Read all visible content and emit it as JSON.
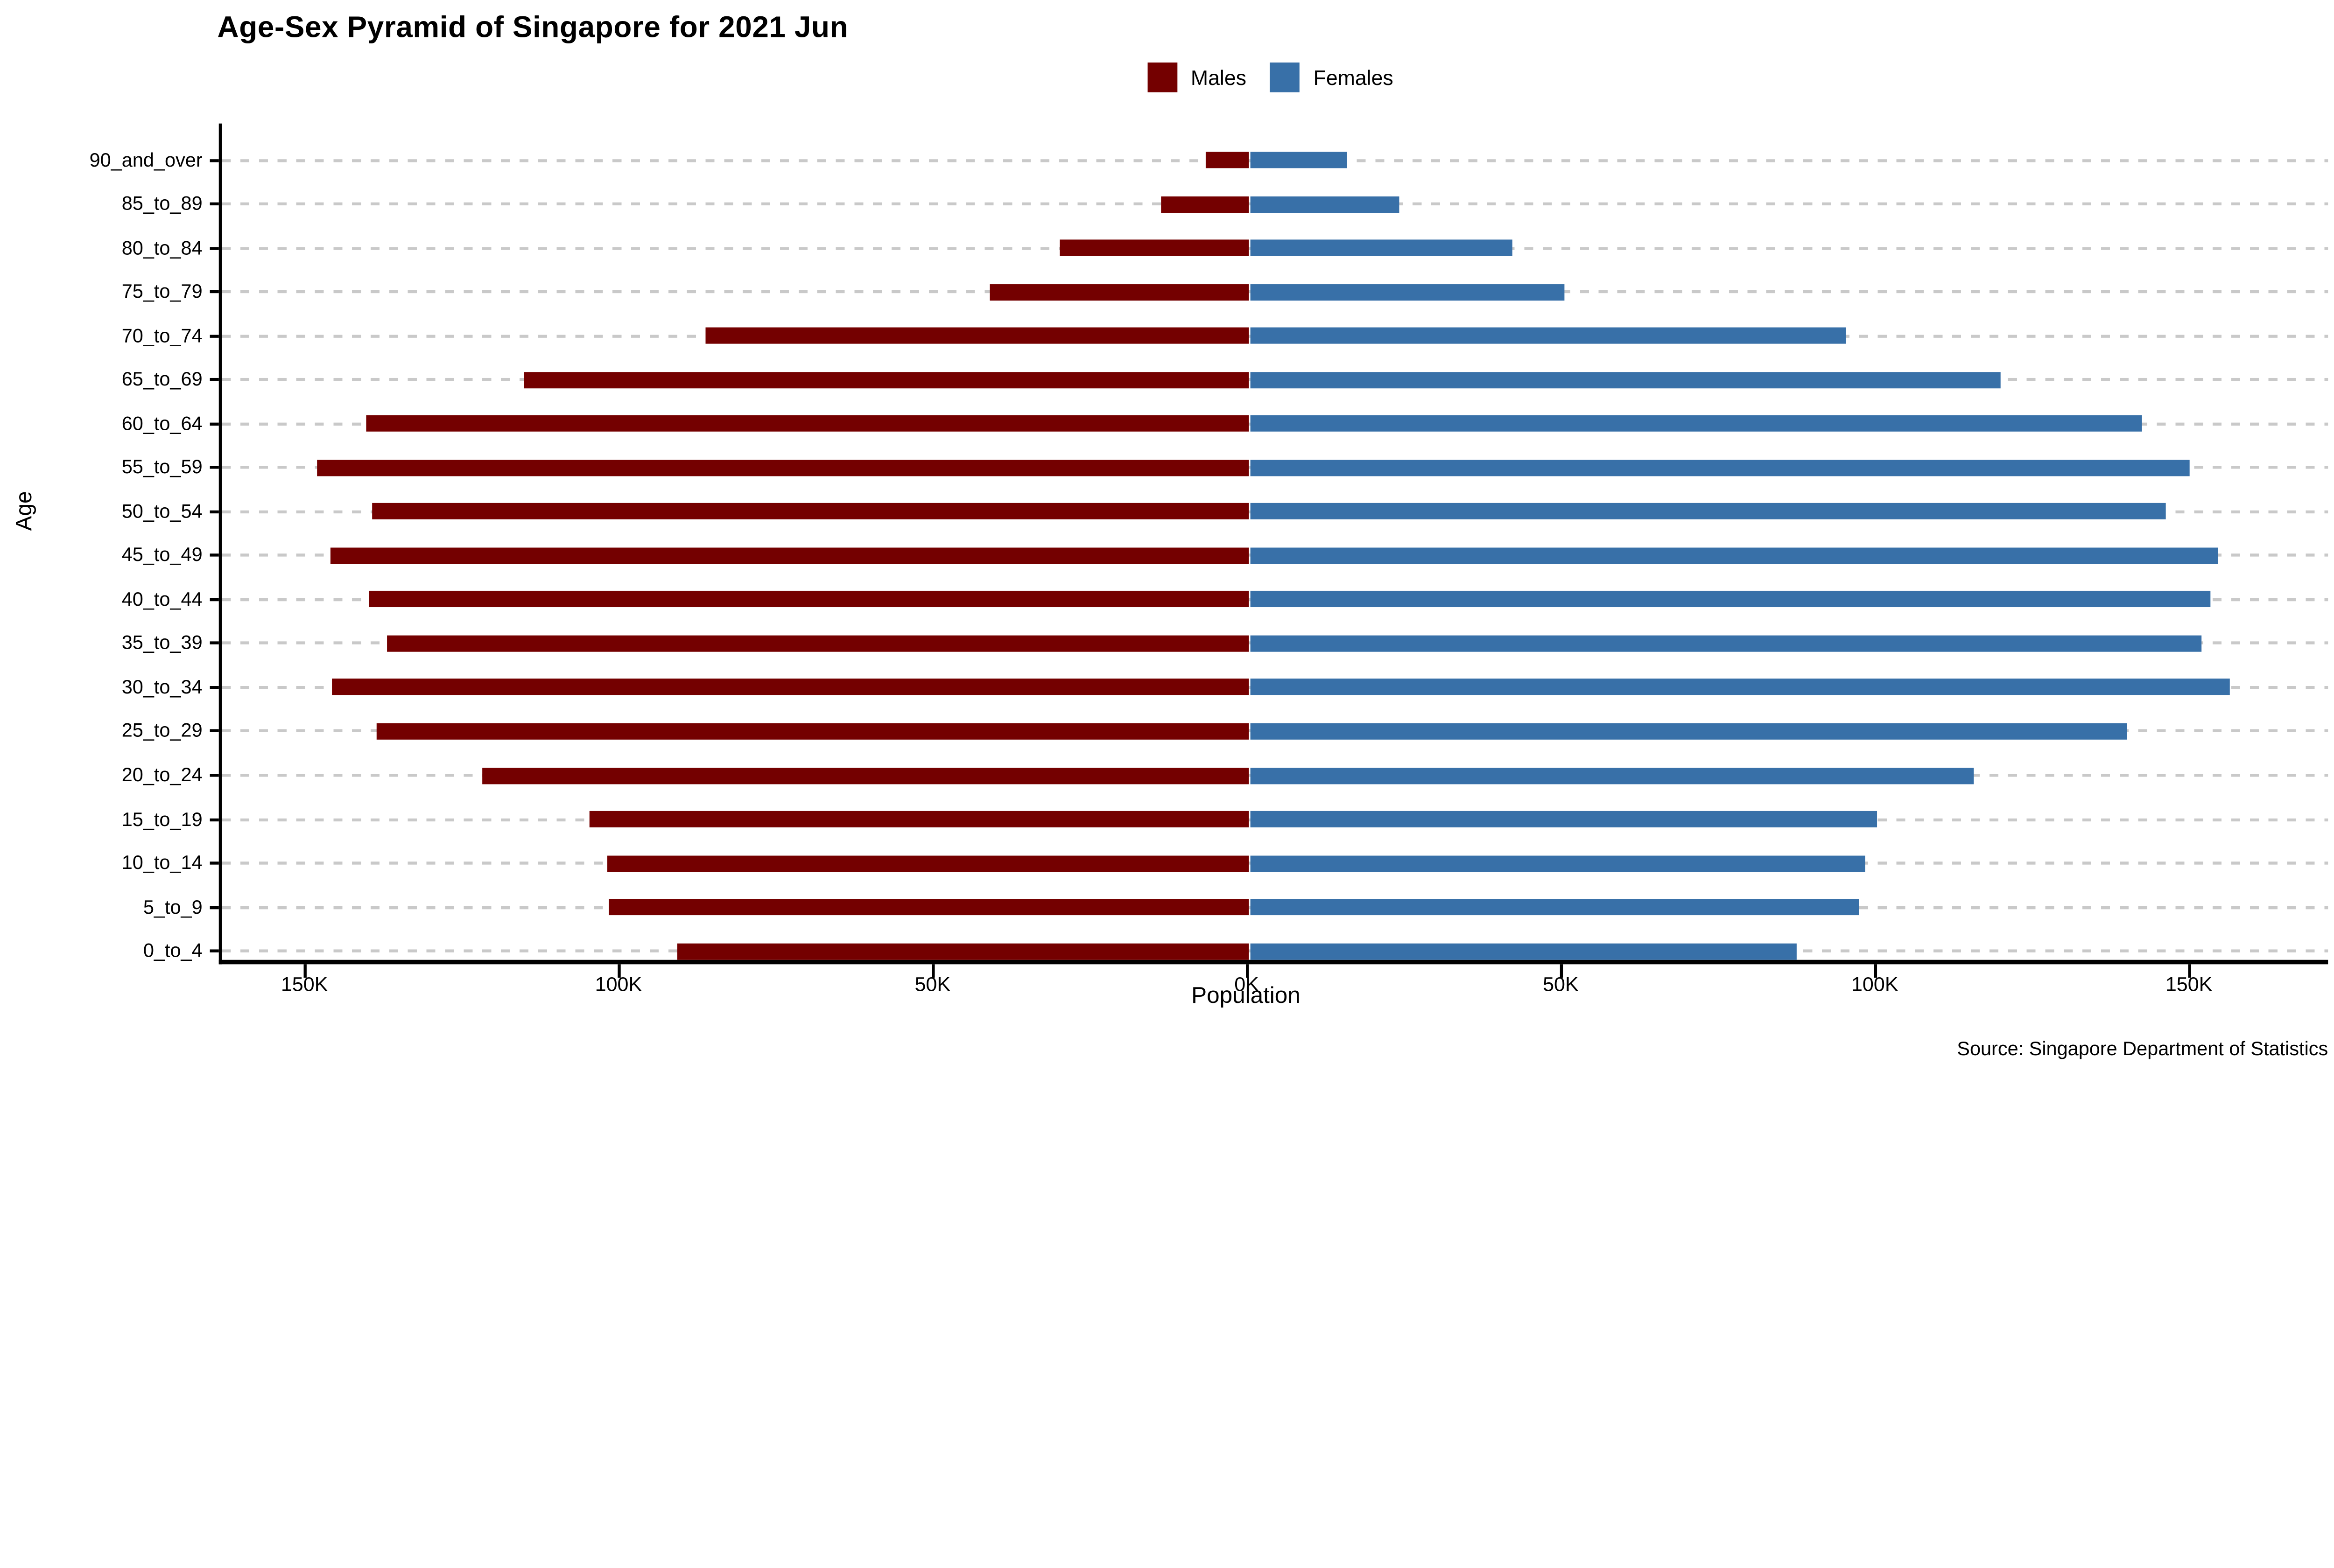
{
  "title": "Age-Sex Pyramid of Singapore for 2021 Jun",
  "legend": {
    "males": "Males",
    "females": "Females"
  },
  "y_axis_label": "Age",
  "x_axis_label": "Population",
  "source": "Source: Singapore Department of Statistics",
  "colors": {
    "males": "#740000",
    "females": "#3870A8",
    "gridline": "#c9c9c9",
    "axis": "#000000"
  },
  "x_axis": {
    "ticks": [
      {
        "label": "150K",
        "value": -150
      },
      {
        "label": "100K",
        "value": -100
      },
      {
        "label": "50K",
        "value": -50
      },
      {
        "label": "0K",
        "value": 0
      },
      {
        "label": "50K",
        "value": 50
      },
      {
        "label": "100K",
        "value": 100
      },
      {
        "label": "150K",
        "value": 150
      }
    ]
  },
  "chart_data": {
    "type": "bar",
    "subtype": "population-pyramid-horizontal-diverging",
    "title": "Age-Sex Pyramid of Singapore for 2021 Jun",
    "xlabel": "Population",
    "ylabel": "Age",
    "units": "thousands of persons",
    "row_order": "top-to-bottom",
    "grid": "dashed-horizontal",
    "legend_position": "top-center",
    "xlim_left_thousands": 163.7,
    "xlim_right_thousands": 171.6,
    "categories": [
      "90_and_over",
      "85_to_89",
      "80_to_84",
      "75_to_79",
      "70_to_74",
      "65_to_69",
      "60_to_64",
      "55_to_59",
      "50_to_54",
      "45_to_49",
      "40_to_44",
      "35_to_39",
      "30_to_34",
      "25_to_29",
      "20_to_24",
      "15_to_19",
      "10_to_14",
      "5_to_9",
      "0_to_4"
    ],
    "series": [
      {
        "name": "Males",
        "direction": "left",
        "values_thousands": [
          6.9,
          14.1,
          30.1,
          41.4,
          86.5,
          115.6,
          140.6,
          148.5,
          139.7,
          146.4,
          140.1,
          137.4,
          146.2,
          139.0,
          122.1,
          105.2,
          102.3,
          102.0,
          91.0
        ]
      },
      {
        "name": "Females",
        "direction": "right",
        "values_thousands": [
          15.5,
          23.8,
          41.8,
          50.0,
          95.0,
          119.5,
          142.1,
          149.7,
          145.9,
          154.2,
          152.9,
          151.5,
          156.0,
          139.6,
          115.2,
          99.9,
          97.9,
          97.0,
          87.1
        ]
      }
    ]
  }
}
